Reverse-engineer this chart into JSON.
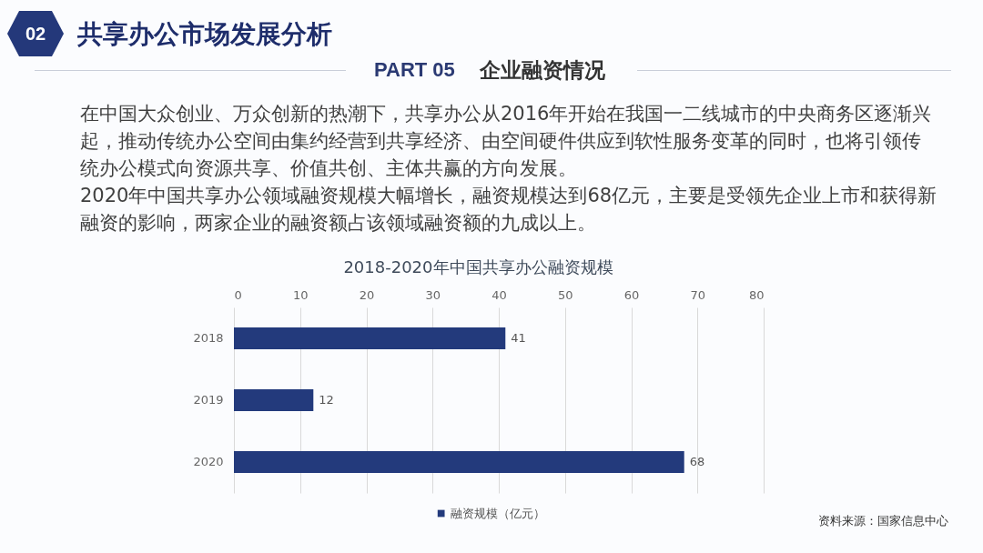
{
  "chart_data": {
    "type": "bar",
    "orientation": "horizontal",
    "title": "2018-2020年中国共享办公融资规模",
    "categories": [
      "2018",
      "2019",
      "2020"
    ],
    "series": [
      {
        "name": "融资规模（亿元）",
        "color": "#233a7c",
        "values": [
          41,
          12,
          68
        ]
      }
    ],
    "xlim": [
      0,
      80
    ],
    "xticks": [
      0,
      10,
      20,
      30,
      40,
      50,
      60,
      70,
      80
    ],
    "grid": "x",
    "data_labels": true,
    "legend": "bottom",
    "annotations": [
      "02",
      "共享办公市场发展分析",
      "PART 05",
      "企业融资情况",
      "在中国大众创业、万众创新的热潮下，共享办公从2016年开始在我国一二线城市的中央商务区逐渐兴起，推动传统办公空间由集约经营到共享经济、由空间硬件供应到软性服务变革的同时，也将引领传统办公模式向资源共享、价值共创、主体共赢的方向发展。",
      "2020年中国共享办公领域融资规模大幅增长，融资规模达到68亿元，主要是受领先企业上市和获得新融资的影响，两家企业的融资额占该领域融资额的九成以上。",
      "资料来源：国家信息中心"
    ]
  }
}
